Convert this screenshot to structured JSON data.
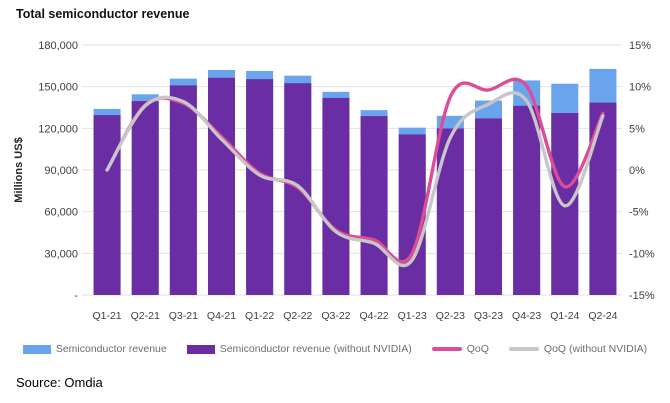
{
  "title": "Total semiconductor revenue",
  "source": "Source: Omdia",
  "colors": {
    "revenue_bar": "#6AA4EC",
    "revenue_ex_nvidia_bar": "#6B2DA3",
    "qoq_line": "#DC4D97",
    "qoq_ex_nvidia_line": "#C7C7C9",
    "gridline": "#E2E2E2",
    "tick_text": "#404040",
    "legend_text": "#6e6e6e"
  },
  "chart_data": {
    "type": "combo-bar-line",
    "categories": [
      "Q1-21",
      "Q2-21",
      "Q3-21",
      "Q4-21",
      "Q1-22",
      "Q2-22",
      "Q3-22",
      "Q4-22",
      "Q1-23",
      "Q2-23",
      "Q3-23",
      "Q4-23",
      "Q1-24",
      "Q2-24"
    ],
    "series": [
      {
        "name": "Semiconductor revenue",
        "type": "bar",
        "axis": "left",
        "color": "#6AA4EC",
        "values": [
          134000,
          144500,
          155800,
          162000,
          161300,
          157900,
          146300,
          133100,
          120500,
          129000,
          140000,
          154500,
          152100,
          162800
        ]
      },
      {
        "name": "Semiconductor revenue (without NVIDIA)",
        "type": "bar",
        "axis": "left",
        "color": "#6B2DA3",
        "values": [
          129500,
          139600,
          150900,
          156400,
          155400,
          152500,
          141900,
          128800,
          115600,
          119900,
          127100,
          136200,
          131000,
          138500
        ]
      },
      {
        "name": "QoQ",
        "type": "line",
        "axis": "right",
        "color": "#DC4D97",
        "values": [
          0.0,
          7.8,
          8.0,
          4.0,
          -0.4,
          -2.1,
          -7.2,
          -8.4,
          -10.0,
          8.8,
          9.6,
          10.1,
          -2.0,
          6.8
        ]
      },
      {
        "name": "QoQ (without NVIDIA)",
        "type": "line",
        "axis": "right",
        "color": "#C7C7C9",
        "values": [
          0.0,
          7.7,
          8.2,
          3.7,
          -0.6,
          -1.9,
          -7.4,
          -8.8,
          -10.8,
          3.9,
          7.9,
          8.3,
          -4.3,
          6.5
        ]
      }
    ],
    "left_axis": {
      "title": "Millions US$",
      "min": 0,
      "max": 180000,
      "ticks": [
        "180,000",
        "150,000",
        "120,000",
        "90,000",
        "60,000",
        "30,000",
        "-"
      ]
    },
    "right_axis": {
      "min": -15,
      "max": 15,
      "ticks": [
        "15%",
        "10%",
        "5%",
        "0%",
        "-5%",
        "-10%",
        "-15%"
      ]
    },
    "grid": "horizontal",
    "legend_position": "bottom"
  }
}
